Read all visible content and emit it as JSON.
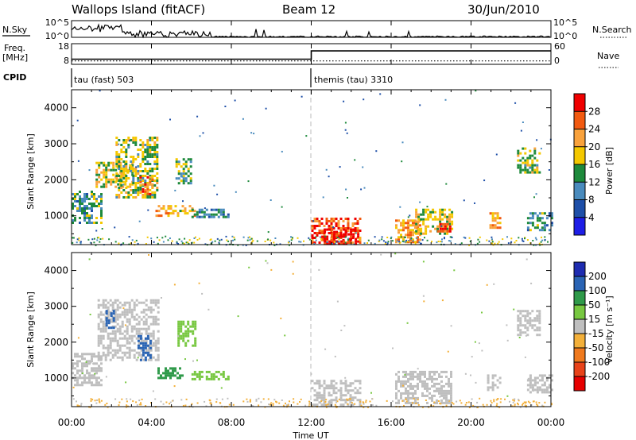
{
  "header": {
    "title": "Wallops Island (fitACF)",
    "beam": "Beam 12",
    "date": "30/Jun/2010"
  },
  "noise_panel": {
    "left_label": "N.Sky",
    "right_label": "N.Search",
    "left_ticks": [
      "10^5",
      "10^0"
    ],
    "right_ticks": [
      "10^5",
      "10^0"
    ]
  },
  "freq_panel": {
    "left_label_1": "Freq.",
    "left_label_2": "[MHz]",
    "right_label": "Nave",
    "left_ticks": [
      "18",
      "8"
    ],
    "right_ticks": [
      "60",
      "0"
    ]
  },
  "cpid_panel": {
    "label": "CPID",
    "segments": [
      {
        "text": "tau (fast) 503",
        "start_hour": 0
      },
      {
        "text": "themis (tau) 3310",
        "start_hour": 12
      }
    ]
  },
  "x_axis": {
    "label": "Time UT",
    "ticks": [
      "00:00",
      "04:00",
      "08:00",
      "12:00",
      "16:00",
      "20:00",
      "00:00"
    ]
  },
  "power_panel": {
    "y_label": "Slant Range [km]",
    "y_ticks": [
      "1000",
      "2000",
      "3000",
      "4000"
    ],
    "colorbar_label": "Power [dB]",
    "colorbar_ticks": [
      "28",
      "24",
      "20",
      "16",
      "12",
      "8",
      "4"
    ],
    "colors": [
      "#f00000",
      "#f25a10",
      "#f9a23c",
      "#f4c800",
      "#1e8a3c",
      "#4a8bbd",
      "#1e4fa8",
      "#1e1ee6"
    ]
  },
  "velocity_panel": {
    "y_label": "Slant Range [km]",
    "y_ticks": [
      "1000",
      "2000",
      "3000",
      "4000"
    ],
    "colorbar_label": "Velocity [m s⁻¹]",
    "colorbar_ticks": [
      "200",
      "100",
      "50",
      "15",
      "-15",
      "-50",
      "-100",
      "-200"
    ],
    "colors": [
      "#1e2cb0",
      "#2a64b4",
      "#2f9a4a",
      "#78c841",
      "#bfbfbf",
      "#f3b03a",
      "#f07a1e",
      "#e8431a",
      "#e60000"
    ]
  },
  "chart_data": {
    "type": "heatmap",
    "x_unit": "hours UT",
    "xlim": [
      0,
      24
    ],
    "ylim_km": [
      200,
      4500
    ],
    "beam": 12,
    "power_regions_dB": [
      {
        "t0": 0.0,
        "t1": 1.5,
        "r0": 800,
        "r1": 1700,
        "value": 12
      },
      {
        "t0": 1.2,
        "t1": 3.0,
        "r0": 1800,
        "r1": 2500,
        "value": 18
      },
      {
        "t0": 2.2,
        "t1": 4.3,
        "r0": 1500,
        "r1": 3200,
        "value": 16
      },
      {
        "t0": 3.4,
        "t1": 4.0,
        "r0": 1600,
        "r1": 2100,
        "value": 26
      },
      {
        "t0": 4.2,
        "t1": 6.2,
        "r0": 1000,
        "r1": 1300,
        "value": 20
      },
      {
        "t0": 5.2,
        "t1": 6.0,
        "r0": 1900,
        "r1": 2600,
        "value": 14
      },
      {
        "t0": 6.0,
        "t1": 7.8,
        "r0": 1000,
        "r1": 1200,
        "value": 10
      },
      {
        "t0": 12.0,
        "t1": 14.5,
        "r0": 250,
        "r1": 950,
        "value": 26
      },
      {
        "t0": 12.5,
        "t1": 14.3,
        "r0": 250,
        "r1": 650,
        "value": 30
      },
      {
        "t0": 16.2,
        "t1": 17.4,
        "r0": 300,
        "r1": 900,
        "value": 22
      },
      {
        "t0": 17.2,
        "t1": 19.0,
        "r0": 500,
        "r1": 1200,
        "value": 18
      },
      {
        "t0": 18.3,
        "t1": 19.0,
        "r0": 550,
        "r1": 800,
        "value": 28
      },
      {
        "t0": 20.8,
        "t1": 21.4,
        "r0": 700,
        "r1": 1100,
        "value": 22
      },
      {
        "t0": 22.3,
        "t1": 23.4,
        "r0": 2200,
        "r1": 2900,
        "value": 16
      },
      {
        "t0": 22.8,
        "t1": 24.0,
        "r0": 600,
        "r1": 1100,
        "value": 12
      }
    ],
    "velocity_regions_ms": [
      {
        "t0": 0.0,
        "t1": 1.5,
        "r0": 800,
        "r1": 1700,
        "value": 0
      },
      {
        "t0": 1.3,
        "t1": 4.3,
        "r0": 1500,
        "r1": 3200,
        "value": 0
      },
      {
        "t0": 1.7,
        "t1": 2.1,
        "r0": 2400,
        "r1": 2900,
        "value": 180
      },
      {
        "t0": 3.3,
        "t1": 4.0,
        "r0": 1500,
        "r1": 2200,
        "value": 180
      },
      {
        "t0": 4.3,
        "t1": 5.5,
        "r0": 1000,
        "r1": 1300,
        "value": 75
      },
      {
        "t0": 5.3,
        "t1": 6.2,
        "r0": 1900,
        "r1": 2600,
        "value": 30
      },
      {
        "t0": 6.0,
        "t1": 7.8,
        "r0": 1000,
        "r1": 1200,
        "value": 30
      },
      {
        "t0": 12.0,
        "t1": 14.5,
        "r0": 250,
        "r1": 950,
        "value": 0
      },
      {
        "t0": 16.2,
        "t1": 19.0,
        "r0": 300,
        "r1": 1200,
        "value": 0
      },
      {
        "t0": 20.8,
        "t1": 21.4,
        "r0": 700,
        "r1": 1100,
        "value": 0
      },
      {
        "t0": 22.3,
        "t1": 23.4,
        "r0": 2200,
        "r1": 2900,
        "value": 0
      },
      {
        "t0": 22.8,
        "t1": 24.0,
        "r0": 600,
        "r1": 1100,
        "value": 0
      }
    ],
    "frequency_MHz": [
      {
        "t0": 0,
        "t1": 12,
        "value": 10.5
      },
      {
        "t0": 12,
        "t1": 24,
        "value": 14.5
      }
    ],
    "nave": [
      {
        "t0": 0,
        "t1": 24,
        "value": 10
      }
    ]
  }
}
